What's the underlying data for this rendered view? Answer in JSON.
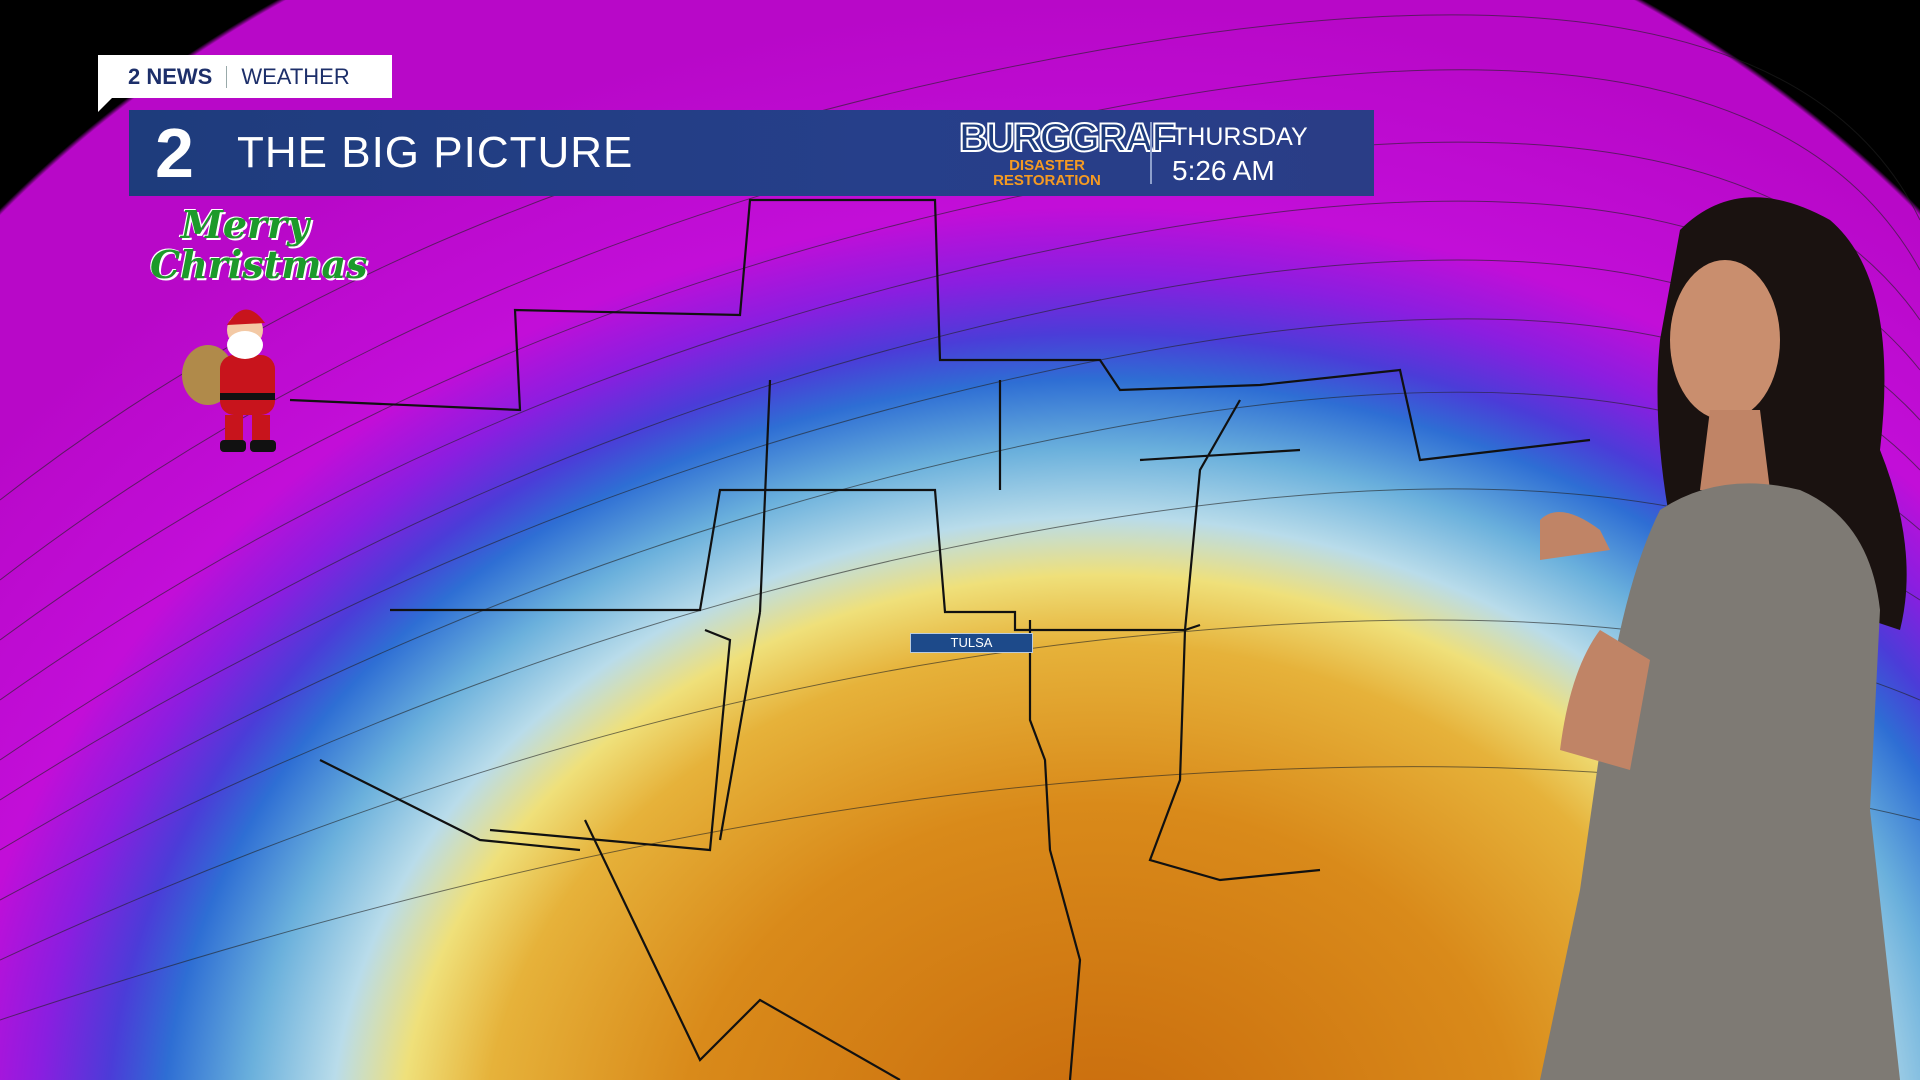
{
  "header": {
    "network": "2 NEWS",
    "section": "WEATHER"
  },
  "banner": {
    "channel_number": "2",
    "title": "THE BIG PICTURE",
    "sponsor_name": "BURGGRAF",
    "sponsor_tagline": "DISASTER RESTORATION",
    "day": "THURSDAY",
    "time": "5:26 AM"
  },
  "decoration": {
    "greeting": "Merry Christmas"
  },
  "map": {
    "city_label": "TULSA"
  },
  "colors": {
    "banner": "#1e3c7c",
    "accent_orange": "#f59a22",
    "map_warm": "#d98a1a",
    "map_cold": "#c20ed8"
  }
}
